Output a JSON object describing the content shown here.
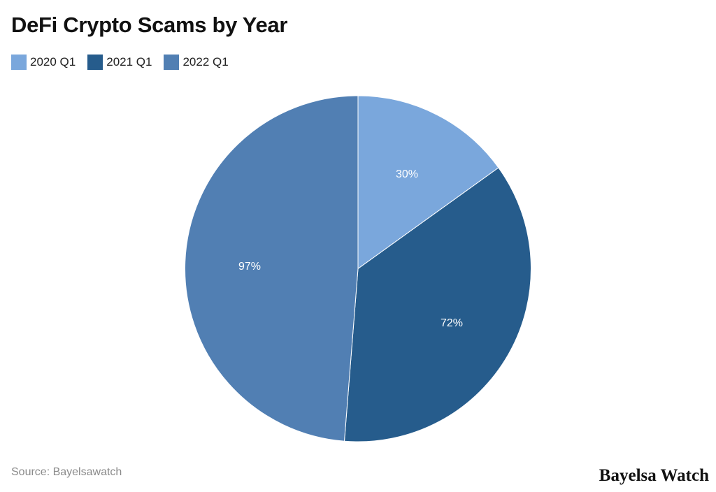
{
  "title": "DeFi Crypto Scams by Year",
  "legend": [
    {
      "label": "2020 Q1",
      "color": "#7aa7dc"
    },
    {
      "label": "2021 Q1",
      "color": "#265c8c"
    },
    {
      "label": "2022 Q1",
      "color": "#517fb3"
    }
  ],
  "slices": [
    {
      "label": "2020 Q1",
      "value": 30,
      "display": "30%",
      "color": "#7aa7dc"
    },
    {
      "label": "2021 Q1",
      "value": 72,
      "display": "72%",
      "color": "#265c8c"
    },
    {
      "label": "2022 Q1",
      "value": 97,
      "display": "97%",
      "color": "#517fb3"
    }
  ],
  "footer": {
    "source": "Source: Bayelsawatch",
    "brand": "Bayelsa Watch"
  },
  "chart_data": {
    "type": "pie",
    "title": "DeFi Crypto Scams by Year",
    "categories": [
      "2020 Q1",
      "2021 Q1",
      "2022 Q1"
    ],
    "values": [
      30,
      72,
      97
    ],
    "value_labels": [
      "30%",
      "72%",
      "97%"
    ],
    "colors": [
      "#7aa7dc",
      "#265c8c",
      "#517fb3"
    ],
    "legend_position": "top-left",
    "start_angle": "12 o'clock, clockwise",
    "source": "Source: Bayelsawatch"
  }
}
